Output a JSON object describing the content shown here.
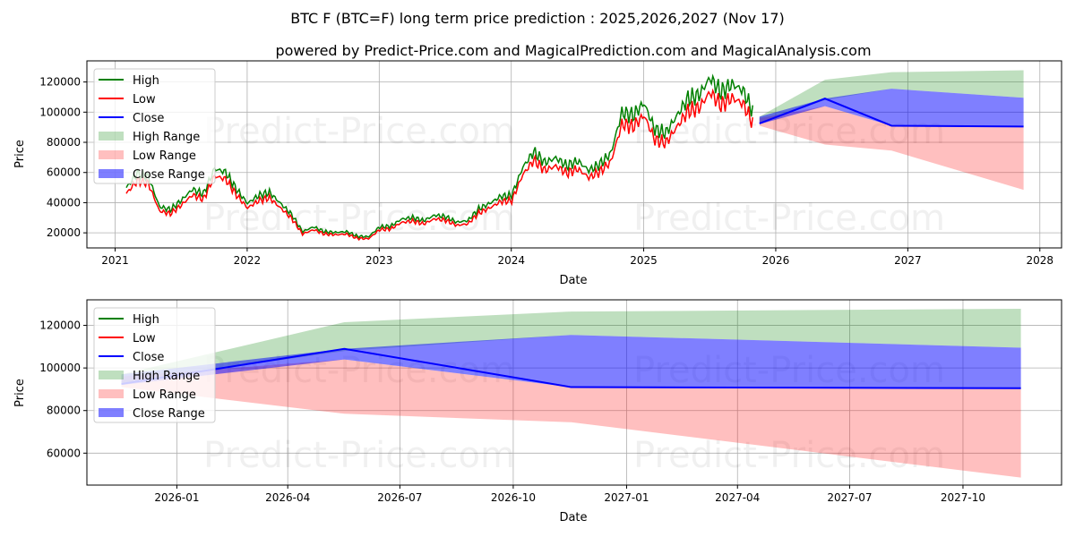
{
  "chart_data": [
    {
      "type": "line",
      "title": "BTC F (BTC=F) long term price prediction : 2025,2026,2027 (Nov 17)",
      "subtitle": "powered by Predict-Price.com and MagicalPrediction.com and MagicalAnalysis.com",
      "xlabel": "Date",
      "ylabel": "Price",
      "xlim": [
        "2020-10-15",
        "2028-03-01"
      ],
      "ylim": [
        10000,
        134000
      ],
      "x_ticks": [
        "2021",
        "2022",
        "2023",
        "2024",
        "2025",
        "2026",
        "2027",
        "2028"
      ],
      "y_ticks": [
        20000,
        40000,
        60000,
        80000,
        100000,
        120000
      ],
      "grid": true,
      "legend": "top-left",
      "watermark": "Predict-Price.com",
      "history_monthly": {
        "start": "2021-02",
        "close": [
          48000,
          57000,
          55000,
          36000,
          34000,
          40000,
          47000,
          44000,
          60000,
          58000,
          47000,
          38000,
          43000,
          45000,
          38000,
          31000,
          20000,
          23000,
          20000,
          19500,
          20000,
          17000,
          16800,
          23000,
          23500,
          28000,
          29000,
          27000,
          30500,
          29500,
          26000,
          27000,
          34500,
          38000,
          42500,
          43000,
          61000,
          71000,
          64000,
          67000,
          62000,
          65000,
          59000,
          63000,
          70000,
          96000,
          94000,
          102000,
          85000,
          83000,
          94000,
          105000,
          107000,
          118000,
          109000,
          114000,
          110000,
          95000
        ],
        "high_factor": 1.04,
        "low_factor": 0.96
      }
    },
    {
      "type": "area",
      "xlabel": "Date",
      "ylabel": "Price",
      "xlim": [
        "2025-10-20",
        "2027-12-20"
      ],
      "ylim": [
        45000,
        132000
      ],
      "x_ticks": [
        "2026-01",
        "2026-04",
        "2026-07",
        "2026-10",
        "2027-01",
        "2027-04",
        "2027-07",
        "2027-10"
      ],
      "y_ticks": [
        60000,
        80000,
        100000,
        120000
      ],
      "grid": true,
      "legend": "top-left"
    }
  ],
  "forecast": {
    "dates": [
      "2025-11-17",
      "2026-05-17",
      "2026-11-17",
      "2027-11-17"
    ],
    "high_range": {
      "lower": [
        93000,
        108000,
        115500,
        109500
      ],
      "upper": [
        97000,
        121500,
        126500,
        127800
      ]
    },
    "low_range": {
      "lower": [
        91000,
        78500,
        74500,
        48500
      ],
      "upper": [
        96000,
        104000,
        91000,
        90500
      ]
    },
    "close_range": {
      "lower": [
        92000,
        104000,
        91000,
        90500
      ],
      "upper": [
        97000,
        109000,
        115500,
        109500
      ]
    },
    "close": [
      92500,
      109000,
      91000,
      90500
    ]
  },
  "legend": [
    "High",
    "Low",
    "Close",
    "High Range",
    "Low Range",
    "Close Range"
  ],
  "colors": {
    "high": "#008000",
    "low": "#ff0000",
    "close": "#0000ff",
    "high_range": "#c2dfc2",
    "low_range": "#ffbfbf",
    "close_range": "#8080ff"
  }
}
